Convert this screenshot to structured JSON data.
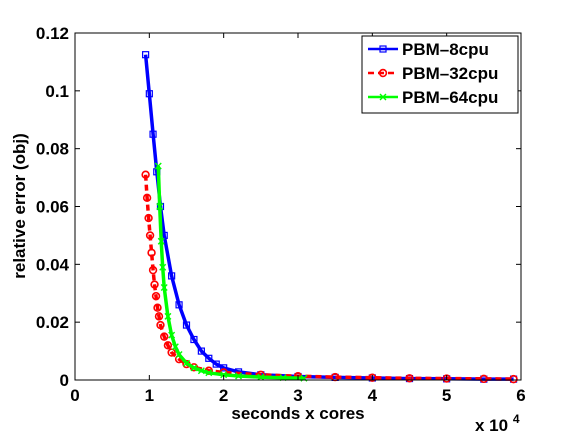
{
  "chart_data": {
    "type": "line",
    "xlabel": "seconds x cores",
    "ylabel": "relative error (obj)",
    "x_multiplier_label": "x 10",
    "x_multiplier_exp": "4",
    "xlim": [
      0,
      6
    ],
    "ylim": [
      0,
      0.12
    ],
    "xticks": [
      "0",
      "1",
      "2",
      "3",
      "4",
      "5",
      "6"
    ],
    "yticks": [
      "0",
      "0.02",
      "0.04",
      "0.06",
      "0.08",
      "0.1",
      "0.12"
    ],
    "grid": false,
    "legend_position": "top-right",
    "series": [
      {
        "name": "PBM–8cpu",
        "color": "#0000ff",
        "style": "solid",
        "marker": "square",
        "x": [
          0.95,
          1.0,
          1.05,
          1.1,
          1.15,
          1.2,
          1.3,
          1.4,
          1.5,
          1.6,
          1.7,
          1.8,
          1.9,
          2.0,
          2.2,
          2.5,
          3.0,
          3.5,
          4.0,
          4.5,
          5.0,
          5.5,
          5.9
        ],
        "y": [
          0.1125,
          0.099,
          0.085,
          0.072,
          0.06,
          0.05,
          0.036,
          0.026,
          0.019,
          0.014,
          0.01,
          0.0075,
          0.0055,
          0.0042,
          0.0028,
          0.0018,
          0.0012,
          0.0009,
          0.0007,
          0.0005,
          0.0004,
          0.0003,
          0.0003
        ]
      },
      {
        "name": "PBM–32cpu",
        "color": "#ff0000",
        "style": "dashed",
        "marker": "circle",
        "x": [
          0.95,
          0.97,
          0.99,
          1.01,
          1.03,
          1.05,
          1.07,
          1.09,
          1.11,
          1.13,
          1.15,
          1.2,
          1.25,
          1.3,
          1.4,
          1.5,
          1.6,
          1.8,
          2.0,
          2.5,
          3.0,
          3.5,
          4.0,
          4.5,
          5.0,
          5.5,
          5.9
        ],
        "y": [
          0.071,
          0.063,
          0.056,
          0.05,
          0.044,
          0.038,
          0.033,
          0.029,
          0.025,
          0.022,
          0.019,
          0.015,
          0.012,
          0.0095,
          0.0072,
          0.0055,
          0.0044,
          0.0032,
          0.0026,
          0.0018,
          0.0013,
          0.001,
          0.0008,
          0.0006,
          0.0005,
          0.0004,
          0.0003
        ]
      },
      {
        "name": "PBM–64cpu",
        "color": "#00ff00",
        "style": "solid",
        "marker": "x",
        "x": [
          1.12,
          1.14,
          1.16,
          1.18,
          1.2,
          1.25,
          1.3,
          1.35,
          1.4,
          1.5,
          1.6,
          1.7,
          1.8,
          2.0,
          2.2,
          2.5,
          2.8,
          3.08
        ],
        "y": [
          0.074,
          0.06,
          0.048,
          0.039,
          0.032,
          0.022,
          0.0155,
          0.0115,
          0.0088,
          0.0058,
          0.0042,
          0.0032,
          0.0025,
          0.0018,
          0.0014,
          0.001,
          0.0008,
          0.0006
        ]
      }
    ]
  }
}
